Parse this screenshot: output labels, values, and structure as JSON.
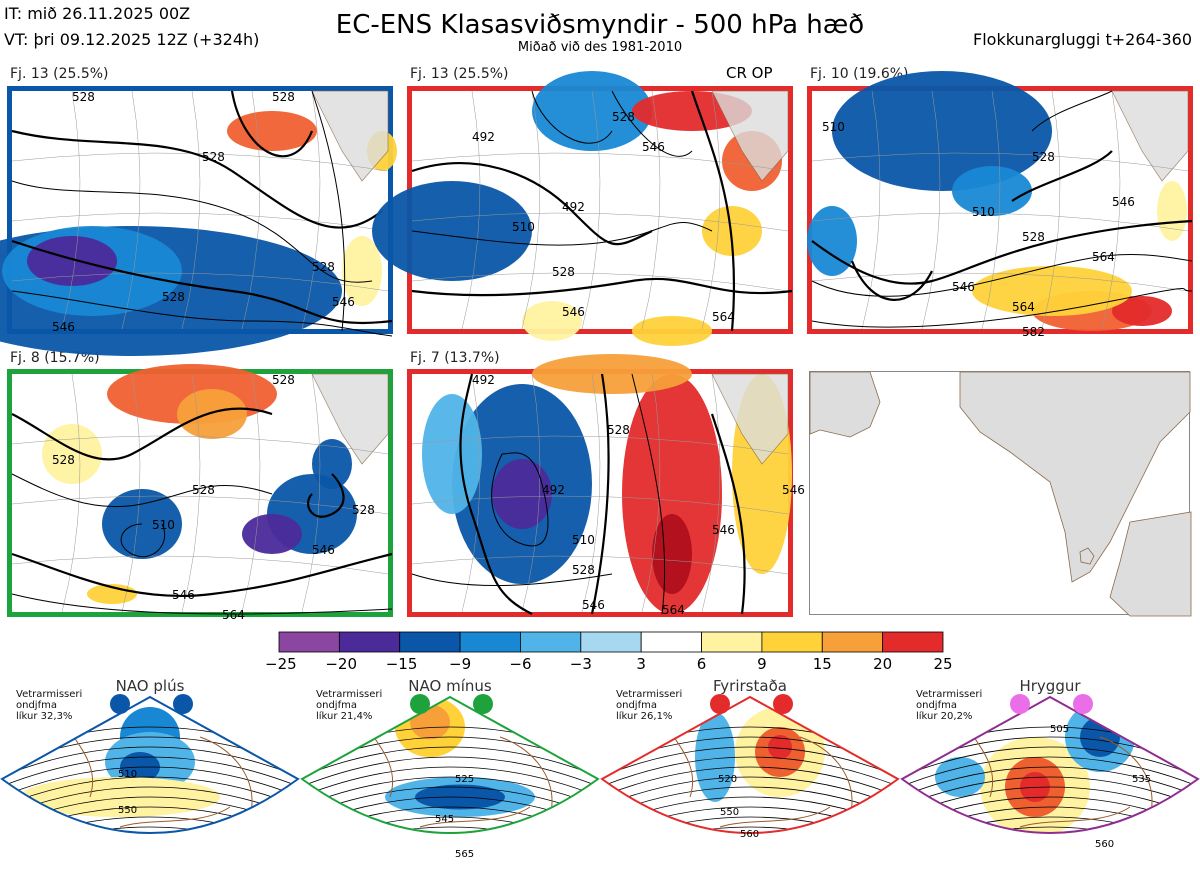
{
  "header": {
    "init_time": "IT: mið 26.11.2025 00Z",
    "valid_time": "VT: þri 09.12.2025 12Z  (+324h)",
    "title": "EC-ENS Klasasviðsmyndir - 500 hPa hæð",
    "subtitle": "Miðað við des 1981-2010",
    "window": "Flokkunargluggi t+264-360"
  },
  "panels": [
    {
      "label": "Fj. 13 (25.5%)",
      "border_color": "#0a56a8",
      "extra": "",
      "contour_labels": [
        "528",
        "528",
        "528",
        "528",
        "528",
        "546",
        "546"
      ]
    },
    {
      "label": "Fj. 13 (25.5%)",
      "border_color": "#e32b2b",
      "extra": "CR OP",
      "contour_labels": [
        "492",
        "492",
        "510",
        "528",
        "528",
        "546",
        "546",
        "564"
      ]
    },
    {
      "label": "Fj. 10 (19.6%)",
      "border_color": "#e32b2b",
      "extra": "",
      "contour_labels": [
        "510",
        "510",
        "528",
        "528",
        "546",
        "546",
        "564",
        "564",
        "582"
      ]
    },
    {
      "label": "Fj. 8 (15.7%)",
      "border_color": "#1ea33c",
      "extra": "",
      "contour_labels": [
        "528",
        "528",
        "528",
        "510",
        "528",
        "546",
        "546",
        "564"
      ]
    },
    {
      "label": "Fj. 7 (13.7%)",
      "border_color": "#e32b2b",
      "extra": "",
      "contour_labels": [
        "492",
        "492",
        "528",
        "510",
        "528",
        "546",
        "546",
        "564",
        "546"
      ]
    }
  ],
  "colorbar": {
    "ticks": [
      "−25",
      "−20",
      "−15",
      "−9",
      "−6",
      "−3",
      "3",
      "6",
      "9",
      "15",
      "20",
      "25"
    ],
    "colors": [
      "#8a46a0",
      "#4b2a9a",
      "#0a56a8",
      "#1888d4",
      "#50b4e8",
      "#a6d8f2",
      "#ffffff",
      "#fff2a0",
      "#ffd23a",
      "#f7a03a",
      "#ef6030",
      "#e32b2b",
      "#b0101e"
    ]
  },
  "regimes": [
    {
      "name": "NAO plús",
      "note": [
        "Vetrarmisseri",
        "ondjfma",
        "líkur 32,3%"
      ],
      "color": "#0a56a8",
      "labels": [
        "510",
        "550"
      ]
    },
    {
      "name": "NAO mínus",
      "note": [
        "Vetrarmisseri",
        "ondjfma",
        "líkur 21,4%"
      ],
      "color": "#1ea33c",
      "labels": [
        "525",
        "545",
        "565"
      ]
    },
    {
      "name": "Fyrirstaða",
      "note": [
        "Vetrarmisseri",
        "ondjfma",
        "líkur 26,1%"
      ],
      "color": "#e32b2b",
      "labels": [
        "520",
        "550",
        "560"
      ]
    },
    {
      "name": "Hryggur",
      "note": [
        "Vetrarmisseri",
        "ondjfma",
        "líkur 20,2%"
      ],
      "color": "#8e2c92",
      "dot_color": "#ea6ee8",
      "labels": [
        "505",
        "535",
        "560"
      ]
    }
  ]
}
